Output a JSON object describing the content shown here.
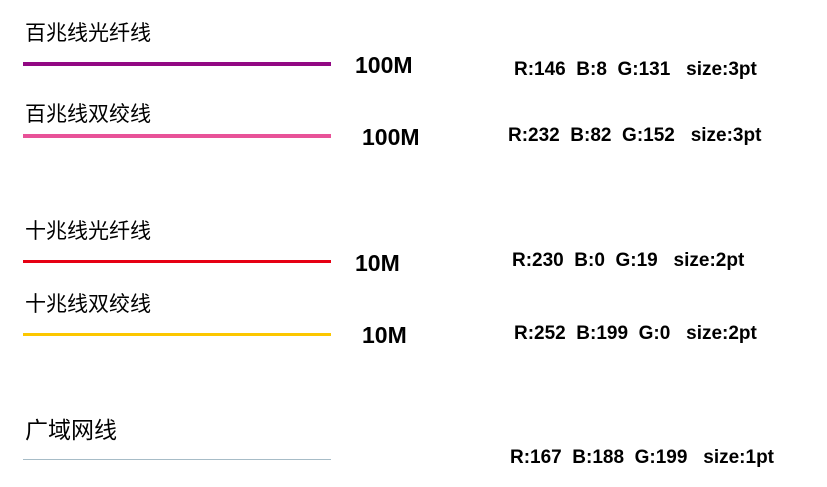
{
  "legend": [
    {
      "label": "百兆线光纤线",
      "speed": "100M",
      "spec": "R:146  B:8  G:131   size:3pt",
      "color": "#920883",
      "thickness_pt": 3
    },
    {
      "label": "百兆线双绞线",
      "speed": "100M",
      "spec": "R:232  B:82  G:152   size:3pt",
      "color": "#E85298",
      "thickness_pt": 3
    },
    {
      "label": "十兆线光纤线",
      "speed": "10M",
      "spec": "R:230  B:0  G:19   size:2pt",
      "color": "#E60013",
      "thickness_pt": 2
    },
    {
      "label": "十兆线双绞线",
      "speed": "10M",
      "spec": "R:252  B:199  G:0   size:2pt",
      "color": "#FCC700",
      "thickness_pt": 2
    },
    {
      "label": "广域网线",
      "speed": "",
      "spec": "R:167  B:188  G:199   size:1pt",
      "color": "#A7BCC7",
      "thickness_pt": 1
    }
  ]
}
